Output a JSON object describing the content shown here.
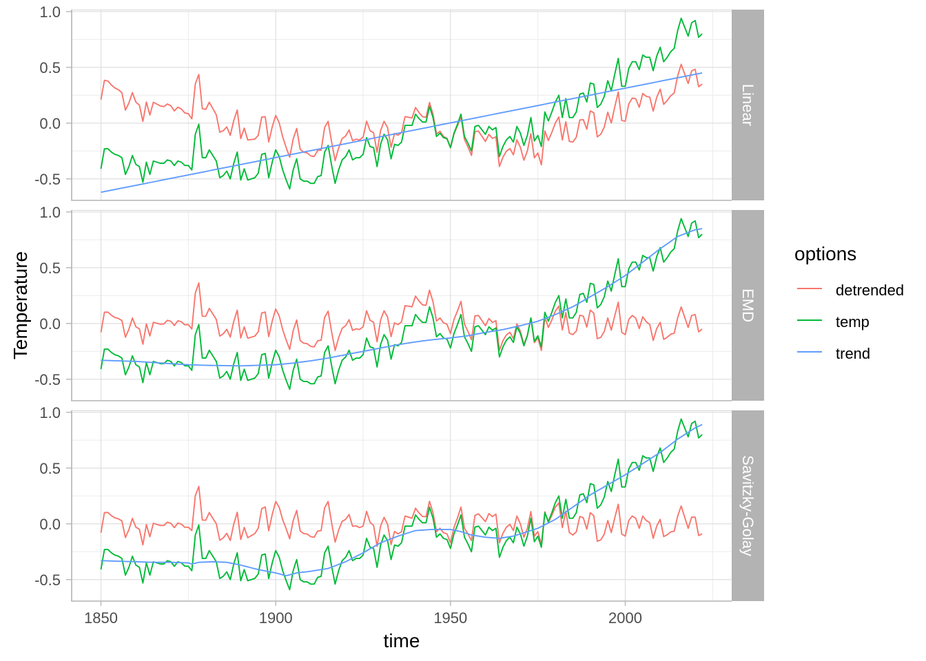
{
  "chart_data": {
    "type": "line",
    "title": "",
    "xlabel": "time",
    "ylabel": "Temperature",
    "xlim": [
      1841.6,
      2030.5
    ],
    "ylim": [
      -0.69,
      1.02
    ],
    "grid": true,
    "x_ticks": [
      1850,
      1900,
      1950,
      2000
    ],
    "x_tick_labels": [
      "1850",
      "1900",
      "1950",
      "2000"
    ],
    "x_minor_breaks": [
      1875,
      1925,
      1975,
      2025
    ],
    "y_ticks": [
      1.0,
      0.5,
      0.0,
      -0.5
    ],
    "y_tick_labels": [
      "1.0",
      "0.5",
      "0.0",
      "-0.5"
    ],
    "y_minor_breaks": [
      0.75,
      0.25,
      -0.25
    ],
    "legend": {
      "title": "options",
      "position": "right",
      "entries": [
        {
          "label": "detrended",
          "series": "detrended",
          "color": "#F8766D"
        },
        {
          "label": "temp",
          "series": "temp",
          "color": "#00BA38"
        },
        {
          "label": "trend",
          "series": "trend",
          "color": "#619CFF"
        }
      ]
    },
    "strip_color": "#B3B3B3",
    "years": {
      "start": 1850,
      "end": 2022,
      "step": 1
    },
    "temp": [
      -0.41,
      -0.23,
      -0.23,
      -0.26,
      -0.28,
      -0.29,
      -0.31,
      -0.46,
      -0.39,
      -0.29,
      -0.37,
      -0.39,
      -0.53,
      -0.35,
      -0.46,
      -0.34,
      -0.35,
      -0.36,
      -0.36,
      -0.33,
      -0.34,
      -0.38,
      -0.34,
      -0.35,
      -0.38,
      -0.38,
      -0.42,
      -0.1,
      -0.01,
      -0.31,
      -0.31,
      -0.24,
      -0.29,
      -0.34,
      -0.49,
      -0.47,
      -0.43,
      -0.5,
      -0.36,
      -0.26,
      -0.51,
      -0.41,
      -0.51,
      -0.5,
      -0.49,
      -0.45,
      -0.28,
      -0.27,
      -0.49,
      -0.35,
      -0.24,
      -0.3,
      -0.42,
      -0.51,
      -0.59,
      -0.42,
      -0.32,
      -0.5,
      -0.52,
      -0.52,
      -0.54,
      -0.54,
      -0.48,
      -0.47,
      -0.26,
      -0.2,
      -0.38,
      -0.54,
      -0.42,
      -0.33,
      -0.3,
      -0.24,
      -0.33,
      -0.31,
      -0.31,
      -0.28,
      -0.13,
      -0.21,
      -0.22,
      -0.39,
      -0.19,
      -0.1,
      -0.15,
      -0.32,
      -0.19,
      -0.2,
      -0.17,
      -0.02,
      -0.02,
      -0.02,
      0.08,
      0.04,
      0.01,
      0.01,
      0.15,
      0.05,
      -0.12,
      -0.09,
      -0.13,
      -0.14,
      -0.22,
      -0.09,
      -0.01,
      0.08,
      -0.12,
      -0.18,
      -0.25,
      -0.03,
      -0.02,
      -0.06,
      -0.1,
      -0.03,
      -0.06,
      -0.04,
      -0.3,
      -0.21,
      -0.15,
      -0.12,
      -0.17,
      -0.03,
      -0.09,
      -0.2,
      -0.11,
      0.05,
      -0.16,
      -0.11,
      -0.21,
      0.1,
      0.02,
      0.1,
      0.19,
      0.25,
      0.05,
      0.22,
      0.05,
      0.05,
      0.1,
      0.26,
      0.27,
      0.19,
      0.36,
      0.35,
      0.14,
      0.17,
      0.24,
      0.38,
      0.29,
      0.44,
      0.58,
      0.33,
      0.33,
      0.49,
      0.55,
      0.55,
      0.48,
      0.61,
      0.59,
      0.59,
      0.47,
      0.6,
      0.68,
      0.55,
      0.59,
      0.64,
      0.67,
      0.83,
      0.94,
      0.86,
      0.78,
      0.9,
      0.92,
      0.77,
      0.8
    ],
    "panels": [
      {
        "label": "Linear",
        "trend": [
          [
            1850,
            -0.62
          ],
          [
            2022,
            0.45
          ]
        ]
      },
      {
        "label": "EMD",
        "trend": [
          [
            1850,
            -0.33
          ],
          [
            1860,
            -0.34
          ],
          [
            1870,
            -0.36
          ],
          [
            1875,
            -0.37
          ],
          [
            1880,
            -0.375
          ],
          [
            1890,
            -0.38
          ],
          [
            1900,
            -0.37
          ],
          [
            1905,
            -0.355
          ],
          [
            1910,
            -0.335
          ],
          [
            1915,
            -0.31
          ],
          [
            1920,
            -0.28
          ],
          [
            1925,
            -0.25
          ],
          [
            1930,
            -0.22
          ],
          [
            1935,
            -0.19
          ],
          [
            1940,
            -0.165
          ],
          [
            1945,
            -0.145
          ],
          [
            1950,
            -0.13
          ],
          [
            1955,
            -0.11
          ],
          [
            1960,
            -0.08
          ],
          [
            1965,
            -0.055
          ],
          [
            1970,
            -0.02
          ],
          [
            1975,
            0.02
          ],
          [
            1980,
            0.08
          ],
          [
            1985,
            0.15
          ],
          [
            1990,
            0.24
          ],
          [
            1995,
            0.33
          ],
          [
            2000,
            0.43
          ],
          [
            2005,
            0.55
          ],
          [
            2010,
            0.67
          ],
          [
            2015,
            0.78
          ],
          [
            2020,
            0.84
          ],
          [
            2022,
            0.85
          ]
        ]
      },
      {
        "label": "Savitzky-Golay",
        "trend": [
          [
            1850,
            -0.33
          ],
          [
            1855,
            -0.335
          ],
          [
            1860,
            -0.34
          ],
          [
            1865,
            -0.345
          ],
          [
            1870,
            -0.345
          ],
          [
            1875,
            -0.35
          ],
          [
            1876,
            -0.36
          ],
          [
            1878,
            -0.345
          ],
          [
            1882,
            -0.34
          ],
          [
            1886,
            -0.345
          ],
          [
            1890,
            -0.37
          ],
          [
            1895,
            -0.41
          ],
          [
            1900,
            -0.44
          ],
          [
            1903,
            -0.465
          ],
          [
            1906,
            -0.44
          ],
          [
            1910,
            -0.425
          ],
          [
            1915,
            -0.4
          ],
          [
            1920,
            -0.34
          ],
          [
            1925,
            -0.26
          ],
          [
            1930,
            -0.17
          ],
          [
            1935,
            -0.11
          ],
          [
            1940,
            -0.06
          ],
          [
            1945,
            -0.05
          ],
          [
            1950,
            -0.05
          ],
          [
            1953,
            -0.07
          ],
          [
            1956,
            -0.1
          ],
          [
            1960,
            -0.12
          ],
          [
            1964,
            -0.13
          ],
          [
            1968,
            -0.11
          ],
          [
            1972,
            -0.07
          ],
          [
            1975,
            -0.04
          ],
          [
            1980,
            0.04
          ],
          [
            1985,
            0.15
          ],
          [
            1990,
            0.26
          ],
          [
            1995,
            0.35
          ],
          [
            2000,
            0.44
          ],
          [
            2005,
            0.54
          ],
          [
            2010,
            0.64
          ],
          [
            2015,
            0.76
          ],
          [
            2020,
            0.86
          ],
          [
            2022,
            0.89
          ]
        ]
      }
    ]
  }
}
